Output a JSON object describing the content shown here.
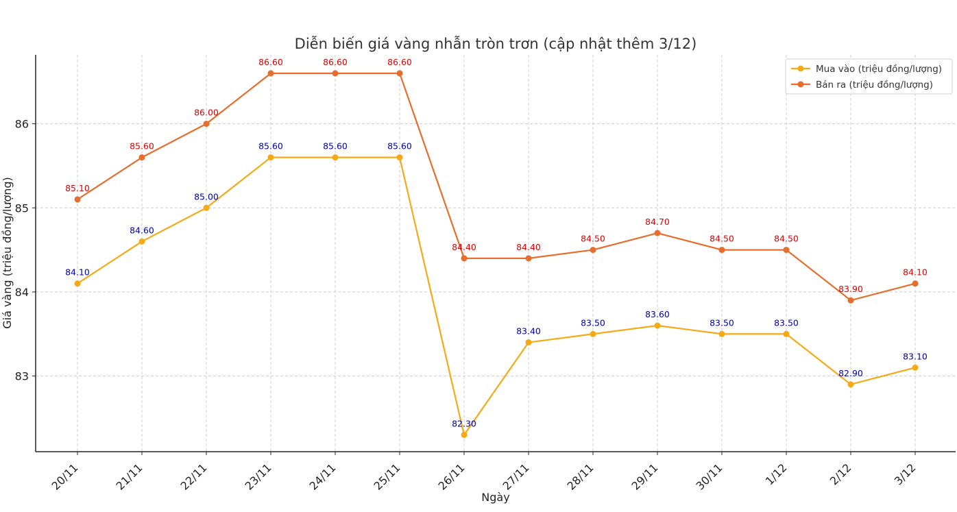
{
  "chart_data": {
    "type": "line",
    "title": "Diễn biến giá vàng nhẫn tròn trơn (cập nhật thêm 3/12)",
    "xlabel": "Ngày",
    "ylabel": "Giá vàng (triệu đồng/lượng)",
    "categories": [
      "20/11",
      "21/11",
      "22/11",
      "23/11",
      "24/11",
      "25/11",
      "26/11",
      "27/11",
      "28/11",
      "29/11",
      "30/11",
      "1/12",
      "2/12",
      "3/12"
    ],
    "ylim": [
      82.1,
      86.82
    ],
    "yticks": [
      83,
      84,
      85,
      86
    ],
    "grid": true,
    "legend_position": "top-right",
    "series": [
      {
        "name": "Mua vào (triệu đồng/lượng)",
        "color": "#f5aa15",
        "label_color": "#0000aa",
        "values": [
          84.1,
          84.6,
          85.0,
          85.6,
          85.6,
          85.6,
          82.3,
          83.4,
          83.5,
          83.6,
          83.5,
          83.5,
          82.9,
          83.1
        ]
      },
      {
        "name": "Bán ra (triệu đồng/lượng)",
        "color": "#e86c2c",
        "label_color": "#dd0000",
        "values": [
          85.1,
          85.6,
          86.0,
          86.6,
          86.6,
          86.6,
          84.4,
          84.4,
          84.5,
          84.7,
          84.5,
          84.5,
          83.9,
          84.1
        ]
      }
    ]
  }
}
